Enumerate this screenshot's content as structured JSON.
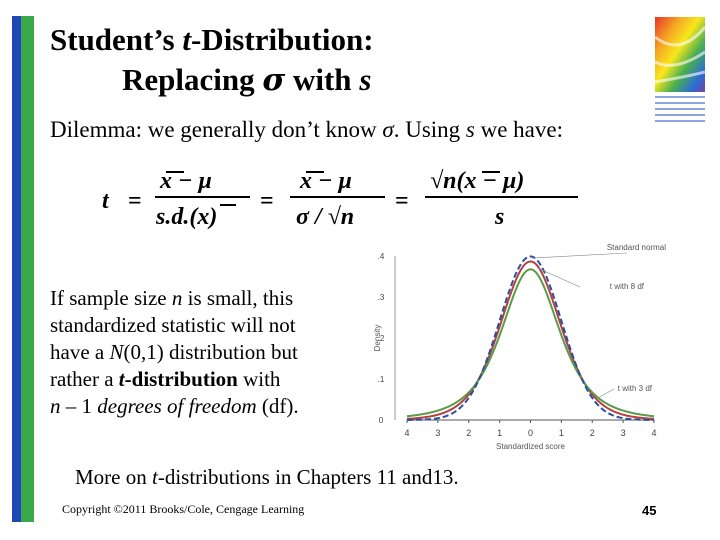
{
  "title": {
    "line1_prefix": "Student’s ",
    "line1_t": "t",
    "line1_suffix": "-Distribution:",
    "line2_prefix": "Replacing ",
    "line2_sigma": "σ",
    "line2_mid": " with ",
    "line2_s": "s"
  },
  "dilemma": {
    "p1": "Dilemma: we generally don’t know ",
    "sigma": "σ",
    "p2": ".  Using ",
    "s": "s",
    "p3": " we have:"
  },
  "formula": {
    "t": "t",
    "eq": "=",
    "num1": "x − μ",
    "den1": "s.d.(x)",
    "num2": "x − μ",
    "den2": "σ / √n",
    "num3": "√n(x − μ)",
    "den3": "s"
  },
  "left_paragraph": {
    "line1_a": "If sample size ",
    "line1_n": "n",
    "line1_b": " is small, this",
    "line2": "standardized statistic will not",
    "line3_a": "have a ",
    "line3_N": "N",
    "line3_b": "(0,1) distribution but",
    "line4_a": "rather a ",
    "line4_t": "t",
    "line4_b": "-distribution",
    "line4_c": " with",
    "line5_n": "n",
    "line5_mid": " – 1 ",
    "line5_dof": "degrees of freedom",
    "line5_end": " (df)."
  },
  "more": {
    "prefix": "More on ",
    "t": "t",
    "suffix": "-distributions in Chapters 11 and13."
  },
  "footer": {
    "copyright": "Copyright ©2011 Brooks/Cole, Cengage Learning",
    "page": "45"
  },
  "chart_data": {
    "type": "line",
    "xlabel": "Standardized score",
    "ylabel": "Density",
    "xlim": [
      -4,
      4
    ],
    "ylim": [
      0,
      0.4
    ],
    "x_ticks": [
      "4",
      "3",
      "2",
      "1",
      "0",
      "1",
      "2",
      "3",
      "4"
    ],
    "y_ticks": [
      "0",
      ".1",
      ".2",
      ".3",
      ".4"
    ],
    "series": [
      {
        "name": "Standard normal",
        "distribution": "normal",
        "df": null,
        "color": "#2c4f9e",
        "dashed": true
      },
      {
        "name": "t with 8 df",
        "distribution": "t",
        "df": 8,
        "color": "#b5413d",
        "dashed": false
      },
      {
        "name": "t with 3 df",
        "distribution": "t",
        "df": 3,
        "color": "#5a9a4a",
        "dashed": false
      }
    ]
  },
  "colors": {
    "bar_blue": "#1f47b8",
    "bar_green": "#3aa84a"
  }
}
